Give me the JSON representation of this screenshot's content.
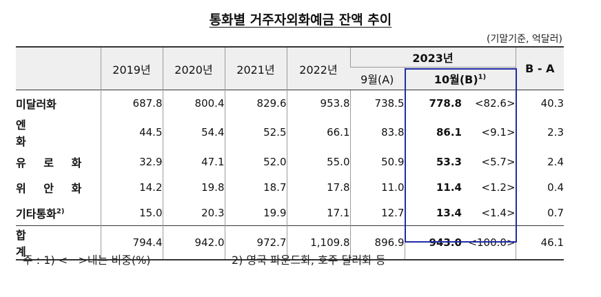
{
  "title": "통화별 거주자외화예금 잔액 추이",
  "unit": "(기말기준, 억달러)",
  "header": {
    "years": [
      "2019년",
      "2020년",
      "2021년",
      "2022년"
    ],
    "year_2023": "2023년",
    "sep": "9월(A)",
    "oct": "10월(B)",
    "oct_sup": "1)",
    "diff": "B - A"
  },
  "rows": [
    {
      "label": "미달러화",
      "sup": "",
      "v2019": "687.8",
      "v2020": "800.4",
      "v2021": "829.6",
      "v2022": "953.8",
      "sep": "738.5",
      "oct": "778.8",
      "share": "<82.6>",
      "diff": "40.3"
    },
    {
      "label": "엔 화",
      "sup": "",
      "v2019": "44.5",
      "v2020": "54.4",
      "v2021": "52.5",
      "v2022": "66.1",
      "sep": "83.8",
      "oct": "86.1",
      "share": "<9.1>",
      "diff": "2.3"
    },
    {
      "label": "유 로 화",
      "sup": "",
      "v2019": "32.9",
      "v2020": "47.1",
      "v2021": "52.0",
      "v2022": "55.0",
      "sep": "50.9",
      "oct": "53.3",
      "share": "<5.7>",
      "diff": "2.4"
    },
    {
      "label": "위 안 화",
      "sup": "",
      "v2019": "14.2",
      "v2020": "19.8",
      "v2021": "18.7",
      "v2022": "17.8",
      "sep": "11.0",
      "oct": "11.4",
      "share": "<1.2>",
      "diff": "0.4"
    },
    {
      "label": "기타통화",
      "sup": "2)",
      "v2019": "15.0",
      "v2020": "20.3",
      "v2021": "19.9",
      "v2022": "17.1",
      "sep": "12.7",
      "oct": "13.4",
      "share": "<1.4>",
      "diff": "0.7"
    }
  ],
  "total": {
    "label": "합 계",
    "v2019": "794.4",
    "v2020": "942.0",
    "v2021": "972.7",
    "v2022": "1,109.8",
    "sep": "896.9",
    "oct": "943.0",
    "share": "<100.0>",
    "diff": "46.1"
  },
  "notes": {
    "note1": "주 : 1) <   >내는 비중(%)",
    "note2": "2) 영국 파운드화, 호주 달러화 등"
  },
  "colors": {
    "highlight_border": "#1f2aa6",
    "header_bg": "#efefef"
  }
}
